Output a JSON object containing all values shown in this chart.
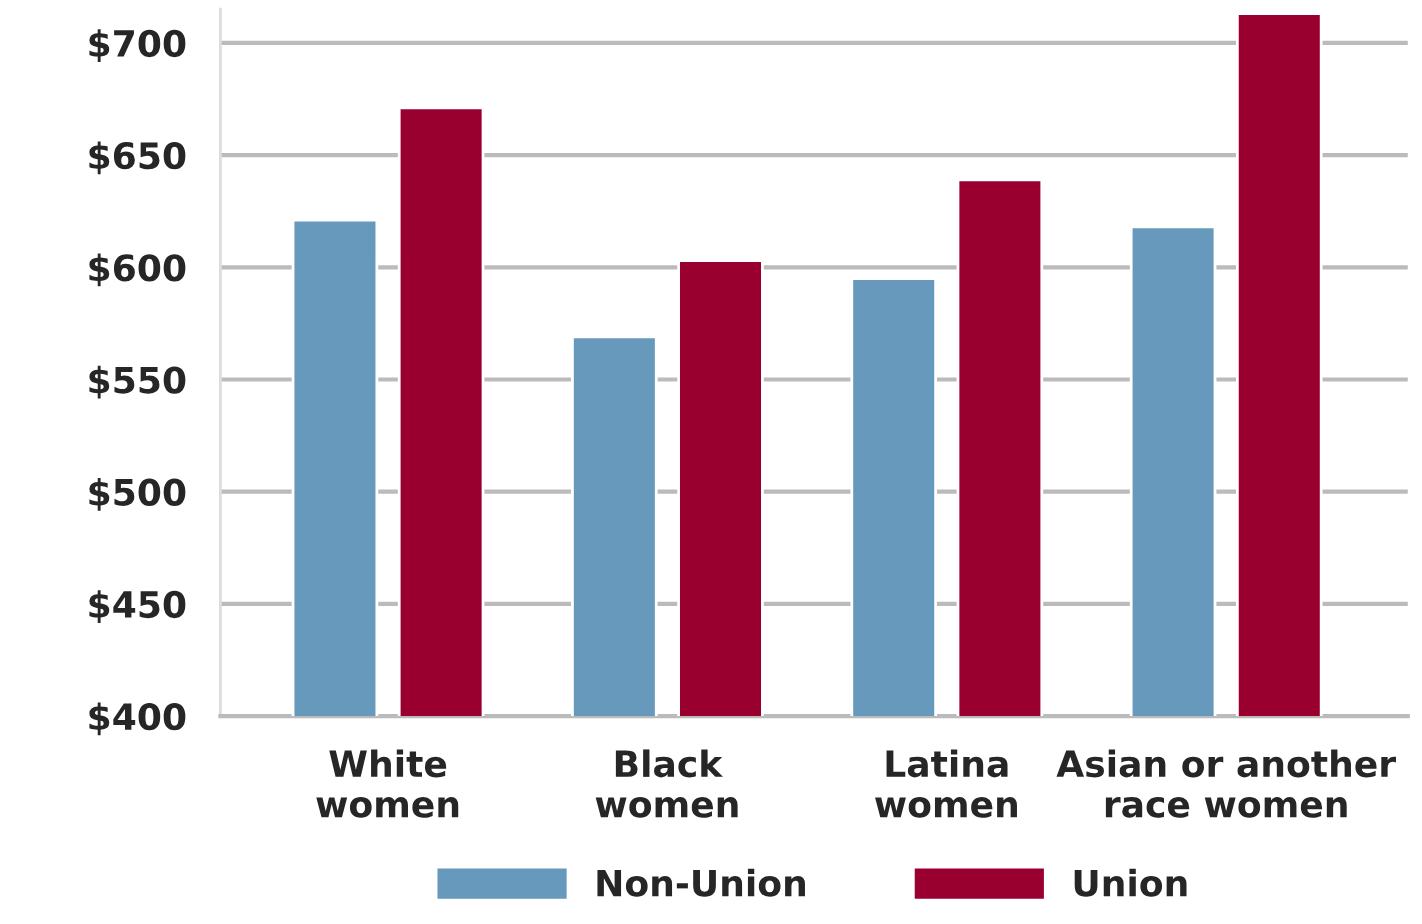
{
  "chart_data": {
    "type": "bar",
    "categories": [
      "White\nwomen",
      "Black\nwomen",
      "Latina\nwomen",
      "Asian or another\nrace women"
    ],
    "series": [
      {
        "name": "Non-Union",
        "color": "#6699bb",
        "values": [
          621,
          569,
          595,
          618
        ]
      },
      {
        "name": "Union",
        "color": "#990030",
        "values": [
          671,
          603,
          639,
          713
        ]
      }
    ],
    "ylim": [
      400,
      715
    ],
    "yticks": [
      {
        "value": 400,
        "label": "$400"
      },
      {
        "value": 450,
        "label": "$450"
      },
      {
        "value": 500,
        "label": "$500"
      },
      {
        "value": 550,
        "label": "$550"
      },
      {
        "value": 600,
        "label": "$600"
      },
      {
        "value": 650,
        "label": "$650"
      },
      {
        "value": 700,
        "label": "$700"
      }
    ],
    "grid": "y",
    "legend": "bottom"
  }
}
